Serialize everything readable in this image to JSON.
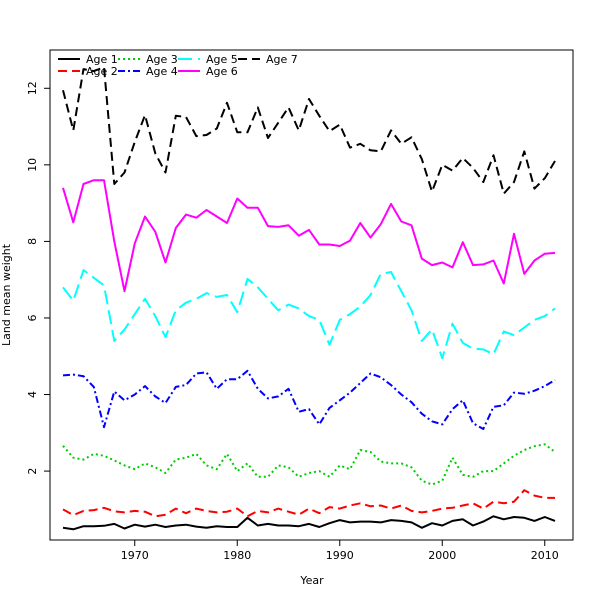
{
  "chart_data": {
    "type": "line",
    "xlabel": "Year",
    "ylabel": "Land mean weight",
    "xlim": [
      1963,
      2011
    ],
    "ylim": [
      0.2,
      13.0
    ],
    "xticks": [
      1970,
      1980,
      1990,
      2000,
      2010
    ],
    "yticks": [
      2,
      4,
      6,
      8,
      10,
      12
    ],
    "grid": false,
    "legend_position": "top-left",
    "x": [
      1963,
      1964,
      1965,
      1966,
      1967,
      1968,
      1969,
      1970,
      1971,
      1972,
      1973,
      1974,
      1975,
      1976,
      1977,
      1978,
      1979,
      1980,
      1981,
      1982,
      1983,
      1984,
      1985,
      1986,
      1987,
      1988,
      1989,
      1990,
      1991,
      1992,
      1993,
      1994,
      1995,
      1996,
      1997,
      1998,
      1999,
      2000,
      2001,
      2002,
      2003,
      2004,
      2005,
      2006,
      2007,
      2008,
      2009,
      2010,
      2011
    ],
    "series": [
      {
        "name": "Age 1",
        "color": "#000000",
        "dash": "solid",
        "values": [
          0.52,
          0.48,
          0.56,
          0.56,
          0.57,
          0.62,
          0.5,
          0.6,
          0.55,
          0.6,
          0.54,
          0.58,
          0.6,
          0.55,
          0.52,
          0.56,
          0.54,
          0.54,
          0.78,
          0.58,
          0.62,
          0.58,
          0.58,
          0.56,
          0.62,
          0.54,
          0.64,
          0.72,
          0.66,
          0.68,
          0.68,
          0.66,
          0.72,
          0.7,
          0.66,
          0.52,
          0.64,
          0.58,
          0.7,
          0.74,
          0.58,
          0.68,
          0.82,
          0.74,
          0.8,
          0.78,
          0.7,
          0.8,
          0.7
        ]
      },
      {
        "name": "Age 2",
        "color": "#ff0000",
        "dash": "dashed",
        "values": [
          1.0,
          0.85,
          0.96,
          0.98,
          1.04,
          0.95,
          0.92,
          0.96,
          0.94,
          0.82,
          0.86,
          1.02,
          0.9,
          1.02,
          0.96,
          0.92,
          0.94,
          1.02,
          0.82,
          0.96,
          0.92,
          1.02,
          0.94,
          0.86,
          1.02,
          0.9,
          1.06,
          1.02,
          1.1,
          1.16,
          1.08,
          1.1,
          1.02,
          1.1,
          0.96,
          0.92,
          0.96,
          1.02,
          1.04,
          1.1,
          1.16,
          1.02,
          1.2,
          1.16,
          1.2,
          1.5,
          1.36,
          1.3,
          1.3
        ]
      },
      {
        "name": "Age 3",
        "color": "#00cc00",
        "dash": "dotted",
        "values": [
          2.66,
          2.35,
          2.3,
          2.45,
          2.4,
          2.28,
          2.15,
          2.05,
          2.2,
          2.1,
          1.95,
          2.3,
          2.35,
          2.45,
          2.15,
          2.05,
          2.45,
          2.0,
          2.2,
          1.85,
          1.85,
          2.15,
          2.1,
          1.85,
          1.95,
          2.0,
          1.85,
          2.15,
          2.05,
          2.55,
          2.5,
          2.25,
          2.2,
          2.2,
          2.1,
          1.75,
          1.65,
          1.75,
          2.35,
          1.9,
          1.85,
          2.0,
          2.0,
          2.2,
          2.4,
          2.55,
          2.65,
          2.7,
          2.5
        ]
      },
      {
        "name": "Age 4",
        "color": "#0000ff",
        "dash": "dashdot",
        "values": [
          4.5,
          4.52,
          4.48,
          4.2,
          3.15,
          4.08,
          3.85,
          4.0,
          4.22,
          3.95,
          3.78,
          4.2,
          4.25,
          4.55,
          4.58,
          4.15,
          4.4,
          4.4,
          4.62,
          4.15,
          3.9,
          3.95,
          4.15,
          3.55,
          3.62,
          3.22,
          3.65,
          3.85,
          4.05,
          4.3,
          4.55,
          4.45,
          4.25,
          4.0,
          3.8,
          3.5,
          3.3,
          3.22,
          3.62,
          3.85,
          3.25,
          3.1,
          3.68,
          3.72,
          4.05,
          4.02,
          4.1,
          4.22,
          4.38
        ]
      },
      {
        "name": "Age 5",
        "color": "#00ffff",
        "dash": "longdash",
        "values": [
          6.8,
          6.45,
          7.25,
          7.05,
          6.85,
          5.4,
          5.7,
          6.1,
          6.5,
          6.05,
          5.5,
          6.2,
          6.4,
          6.5,
          6.65,
          6.55,
          6.6,
          6.15,
          7.02,
          6.8,
          6.5,
          6.2,
          6.35,
          6.25,
          6.05,
          5.95,
          5.3,
          5.95,
          6.1,
          6.3,
          6.6,
          7.15,
          7.2,
          6.7,
          6.2,
          5.4,
          5.7,
          4.95,
          5.85,
          5.35,
          5.2,
          5.18,
          5.05,
          5.65,
          5.55,
          5.75,
          5.95,
          6.05,
          6.25
        ]
      },
      {
        "name": "Age 6",
        "color": "#ff00ff",
        "dash": "solid",
        "values": [
          9.4,
          8.5,
          9.5,
          9.6,
          9.6,
          8.0,
          6.7,
          7.95,
          8.65,
          8.25,
          7.45,
          8.35,
          8.7,
          8.62,
          8.82,
          8.65,
          8.48,
          9.12,
          8.88,
          8.88,
          8.4,
          8.38,
          8.42,
          8.15,
          8.3,
          7.92,
          7.92,
          7.88,
          8.02,
          8.48,
          8.1,
          8.45,
          8.98,
          8.52,
          8.42,
          7.55,
          7.38,
          7.45,
          7.32,
          7.98,
          7.38,
          7.4,
          7.5,
          6.9,
          8.2,
          7.15,
          7.5,
          7.68,
          7.7
        ]
      },
      {
        "name": "Age 7",
        "color": "#000000",
        "dash": "dashed",
        "values": [
          11.95,
          10.9,
          12.5,
          12.45,
          12.55,
          9.5,
          9.8,
          10.6,
          11.3,
          10.3,
          9.8,
          11.28,
          11.25,
          10.75,
          10.78,
          10.95,
          11.62,
          10.85,
          10.85,
          11.5,
          10.7,
          11.1,
          11.5,
          10.9,
          11.72,
          11.28,
          10.88,
          11.05,
          10.45,
          10.55,
          10.38,
          10.35,
          10.9,
          10.55,
          10.72,
          10.15,
          9.3,
          10.0,
          9.85,
          10.18,
          9.92,
          9.55,
          10.25,
          9.25,
          9.55,
          10.35,
          9.38,
          9.65,
          10.1
        ]
      }
    ]
  }
}
